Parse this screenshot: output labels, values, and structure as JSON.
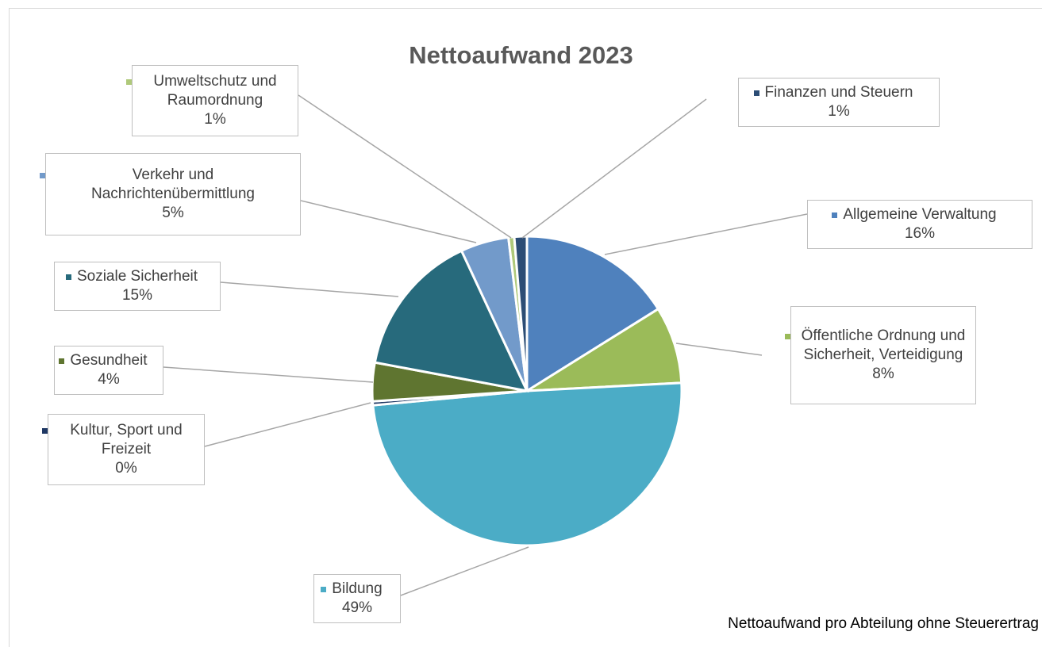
{
  "chart_data": {
    "type": "pie",
    "title": "Nettoaufwand 2023",
    "footnote": "Nettoaufwand pro Abteilung ohne Steuerertrag",
    "slices": [
      {
        "name": "Allgemeine Verwaltung",
        "value": 16,
        "label": "16%",
        "color": "#4f81bd"
      },
      {
        "name": "Öffentliche Ordnung und Sicherheit, Verteidigung",
        "value": 8,
        "label": "8%",
        "color": "#9bbb59"
      },
      {
        "name": "Bildung",
        "value": 49,
        "label": "49%",
        "color": "#4bacc6"
      },
      {
        "name": "Kultur, Sport und Freizeit",
        "value": 0.4,
        "label": "0%",
        "color": "#1f3864"
      },
      {
        "name": "Gesundheit",
        "value": 4,
        "label": "4%",
        "color": "#5f7530"
      },
      {
        "name": "Soziale Sicherheit",
        "value": 15,
        "label": "15%",
        "color": "#276a7c"
      },
      {
        "name": "Verkehr und Nachrichtenübermittlung",
        "value": 5,
        "label": "5%",
        "color": "#729aca"
      },
      {
        "name": "Umweltschutz und Raumordnung",
        "value": 0.6,
        "label": "1%",
        "color": "#afc97a"
      },
      {
        "name": "Finanzen und Steuern",
        "value": 1.3,
        "label": "1%",
        "color": "#2c4d75"
      }
    ]
  }
}
